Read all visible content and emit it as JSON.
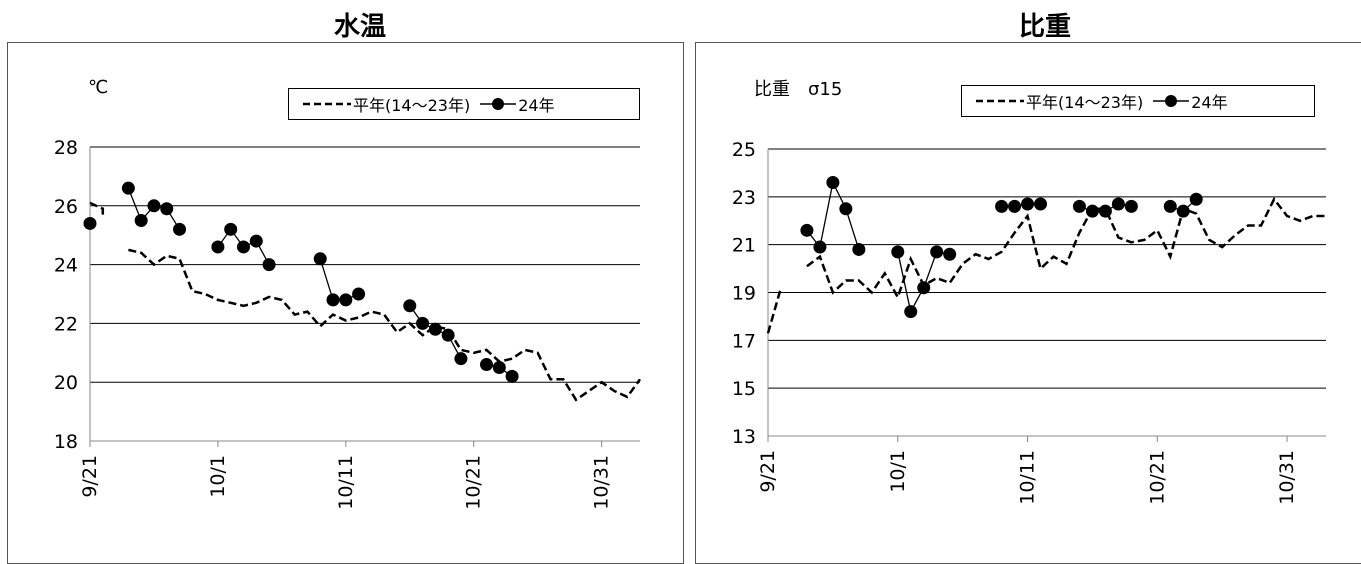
{
  "chart_data": [
    {
      "type": "line",
      "title": "水温",
      "ylabel": "℃",
      "ylim": [
        18,
        28
      ],
      "yticks": [
        "18",
        "20",
        "22",
        "24",
        "26",
        "28"
      ],
      "x_axis": {
        "start": "9/21",
        "end": "11/3",
        "tick_labels": [
          "9/21",
          "10/1",
          "10/11",
          "10/21",
          "10/31"
        ]
      },
      "grid": true,
      "legend": "top-right",
      "series": [
        {
          "name": "平年(14～23年)",
          "style": "dashed",
          "segments": [
            [
              [
                "9/21",
                26.1
              ],
              [
                "9/22",
                25.9
              ],
              [
                "9/22",
                25.7
              ]
            ],
            [
              [
                "9/24",
                24.5
              ],
              [
                "9/25",
                24.4
              ],
              [
                "9/26",
                24.0
              ],
              [
                "9/27",
                24.3
              ],
              [
                "9/28",
                24.2
              ],
              [
                "9/29",
                23.1
              ],
              [
                "9/30",
                23.0
              ],
              [
                "10/1",
                22.8
              ],
              [
                "10/2",
                22.7
              ],
              [
                "10/3",
                22.6
              ],
              [
                "10/4",
                22.7
              ],
              [
                "10/5",
                22.9
              ],
              [
                "10/6",
                22.8
              ],
              [
                "10/7",
                22.3
              ],
              [
                "10/8",
                22.4
              ],
              [
                "10/9",
                21.9
              ],
              [
                "10/10",
                22.3
              ],
              [
                "10/11",
                22.1
              ],
              [
                "10/12",
                22.2
              ],
              [
                "10/13",
                22.4
              ],
              [
                "10/14",
                22.3
              ],
              [
                "10/15",
                21.7
              ],
              [
                "10/16",
                22.0
              ],
              [
                "10/17",
                21.6
              ],
              [
                "10/18",
                21.9
              ],
              [
                "10/19",
                21.8
              ],
              [
                "10/20",
                21.1
              ],
              [
                "10/21",
                21.0
              ],
              [
                "10/22",
                21.1
              ],
              [
                "10/23",
                20.7
              ],
              [
                "10/24",
                20.8
              ],
              [
                "10/25",
                21.1
              ],
              [
                "10/26",
                21.0
              ],
              [
                "10/27",
                20.1
              ],
              [
                "10/28",
                20.1
              ],
              [
                "10/29",
                19.4
              ],
              [
                "10/30",
                19.7
              ],
              [
                "10/31",
                20.0
              ],
              [
                "11/1",
                19.7
              ],
              [
                "11/2",
                19.5
              ],
              [
                "11/3",
                20.1
              ]
            ]
          ]
        },
        {
          "name": "24年",
          "style": "solid-marker",
          "segments": [
            [
              [
                "9/21",
                25.4
              ]
            ],
            [
              [
                "9/24",
                26.6
              ],
              [
                "9/25",
                25.5
              ],
              [
                "9/26",
                26.0
              ],
              [
                "9/27",
                25.9
              ],
              [
                "9/28",
                25.2
              ]
            ],
            [
              [
                "10/1",
                24.6
              ],
              [
                "10/2",
                25.2
              ],
              [
                "10/3",
                24.6
              ],
              [
                "10/4",
                24.8
              ],
              [
                "10/5",
                24.0
              ]
            ],
            [
              [
                "10/9",
                24.2
              ],
              [
                "10/10",
                22.8
              ],
              [
                "10/11",
                22.8
              ],
              [
                "10/12",
                23.0
              ]
            ],
            [
              [
                "10/16",
                22.6
              ],
              [
                "10/17",
                22.0
              ],
              [
                "10/18",
                21.8
              ],
              [
                "10/19",
                21.6
              ],
              [
                "10/20",
                20.8
              ]
            ],
            [
              [
                "10/22",
                20.6
              ],
              [
                "10/23",
                20.5
              ],
              [
                "10/24",
                20.2
              ]
            ]
          ]
        }
      ]
    },
    {
      "type": "line",
      "title": "比重",
      "ylabel": "比重　σ15",
      "ylim": [
        13,
        25
      ],
      "yticks": [
        "13",
        "15",
        "17",
        "19",
        "21",
        "23",
        "25"
      ],
      "x_axis": {
        "start": "9/21",
        "end": "11/3",
        "tick_labels": [
          "9/21",
          "10/1",
          "10/11",
          "10/21",
          "10/31"
        ]
      },
      "grid": true,
      "legend": "top-right",
      "series": [
        {
          "name": "平年(14～23年)",
          "style": "dashed",
          "segments": [
            [
              [
                "9/21",
                17.3
              ],
              [
                "9/22",
                19.2
              ]
            ],
            [
              [
                "9/24",
                20.1
              ],
              [
                "9/25",
                20.5
              ],
              [
                "9/26",
                19.0
              ],
              [
                "9/27",
                19.5
              ],
              [
                "9/28",
                19.5
              ],
              [
                "9/29",
                19.0
              ],
              [
                "9/30",
                19.8
              ],
              [
                "10/1",
                18.8
              ],
              [
                "10/2",
                20.4
              ],
              [
                "10/3",
                19.3
              ],
              [
                "10/4",
                19.6
              ],
              [
                "10/5",
                19.4
              ],
              [
                "10/6",
                20.2
              ],
              [
                "10/7",
                20.6
              ],
              [
                "10/8",
                20.4
              ],
              [
                "10/9",
                20.7
              ],
              [
                "10/10",
                21.5
              ],
              [
                "10/11",
                22.2
              ],
              [
                "10/12",
                20.0
              ],
              [
                "10/13",
                20.5
              ],
              [
                "10/14",
                20.2
              ],
              [
                "10/15",
                21.5
              ],
              [
                "10/16",
                22.5
              ],
              [
                "10/17",
                22.5
              ],
              [
                "10/18",
                21.3
              ],
              [
                "10/19",
                21.1
              ],
              [
                "10/20",
                21.2
              ],
              [
                "10/21",
                21.6
              ],
              [
                "10/22",
                20.5
              ],
              [
                "10/23",
                22.5
              ],
              [
                "10/24",
                22.3
              ],
              [
                "10/25",
                21.2
              ],
              [
                "10/26",
                20.9
              ],
              [
                "10/27",
                21.4
              ],
              [
                "10/28",
                21.8
              ],
              [
                "10/29",
                21.8
              ],
              [
                "10/30",
                22.9
              ],
              [
                "10/31",
                22.2
              ],
              [
                "11/1",
                22.0
              ],
              [
                "11/2",
                22.2
              ],
              [
                "11/3",
                22.2
              ]
            ]
          ]
        },
        {
          "name": "24年",
          "style": "solid-marker",
          "segments": [
            [
              [
                "9/24",
                21.6
              ],
              [
                "9/25",
                20.9
              ],
              [
                "9/26",
                23.6
              ],
              [
                "9/27",
                22.5
              ],
              [
                "9/28",
                20.8
              ]
            ],
            [
              [
                "10/1",
                20.7
              ],
              [
                "10/2",
                18.2
              ],
              [
                "10/3",
                19.2
              ],
              [
                "10/4",
                20.7
              ],
              [
                "10/5",
                20.6
              ]
            ],
            [
              [
                "10/9",
                22.6
              ],
              [
                "10/10",
                22.6
              ],
              [
                "10/11",
                22.7
              ],
              [
                "10/12",
                22.7
              ]
            ],
            [
              [
                "10/15",
                22.6
              ],
              [
                "10/16",
                22.4
              ],
              [
                "10/17",
                22.4
              ],
              [
                "10/18",
                22.7
              ],
              [
                "10/19",
                22.6
              ]
            ],
            [
              [
                "10/22",
                22.6
              ],
              [
                "10/23",
                22.4
              ],
              [
                "10/24",
                22.9
              ]
            ]
          ]
        }
      ]
    }
  ]
}
